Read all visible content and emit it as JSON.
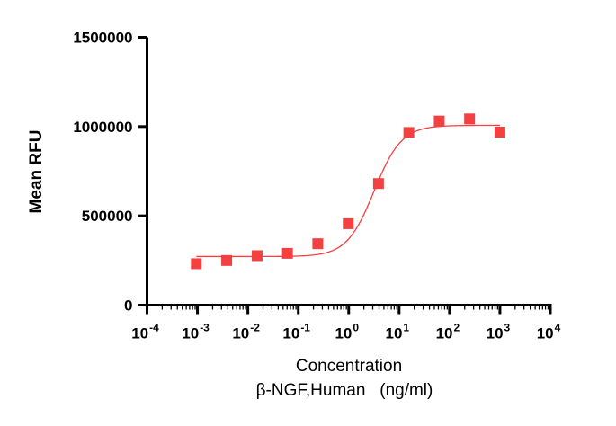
{
  "chart_data": {
    "type": "scatter",
    "title": "",
    "xlabel": "Concentration",
    "xlabel2": "β-NGF,Human   (ng/ml)",
    "ylabel": "Mean RFU",
    "xscale": "log",
    "xlim": [
      0.0001,
      10000
    ],
    "ylim": [
      0,
      1500000
    ],
    "yticks": [
      0,
      500000,
      1000000,
      1500000
    ],
    "ytick_labels": [
      "0",
      "500000",
      "1000000",
      "1500000"
    ],
    "xtick_exponents": [
      "-4",
      "-3",
      "-2",
      "-1",
      "0",
      "1",
      "2",
      "3",
      "4"
    ],
    "grid": false,
    "marker_color": "#f44040",
    "curve_color": "#f44040",
    "series": [
      {
        "x": [
          0.00095,
          0.0038,
          0.0153,
          0.061,
          0.244,
          0.98,
          3.9,
          15.6,
          62.5,
          250,
          1000
        ],
        "y": [
          232000,
          250000,
          277000,
          290000,
          344000,
          456000,
          681000,
          967000,
          1031000,
          1043000,
          969000
        ]
      }
    ],
    "fit": {
      "model": "4PL",
      "bottom": 272000,
      "top": 1007000,
      "ec50": 3.2,
      "hill": 1.6,
      "x_range": [
        0.00095,
        1000
      ]
    }
  }
}
